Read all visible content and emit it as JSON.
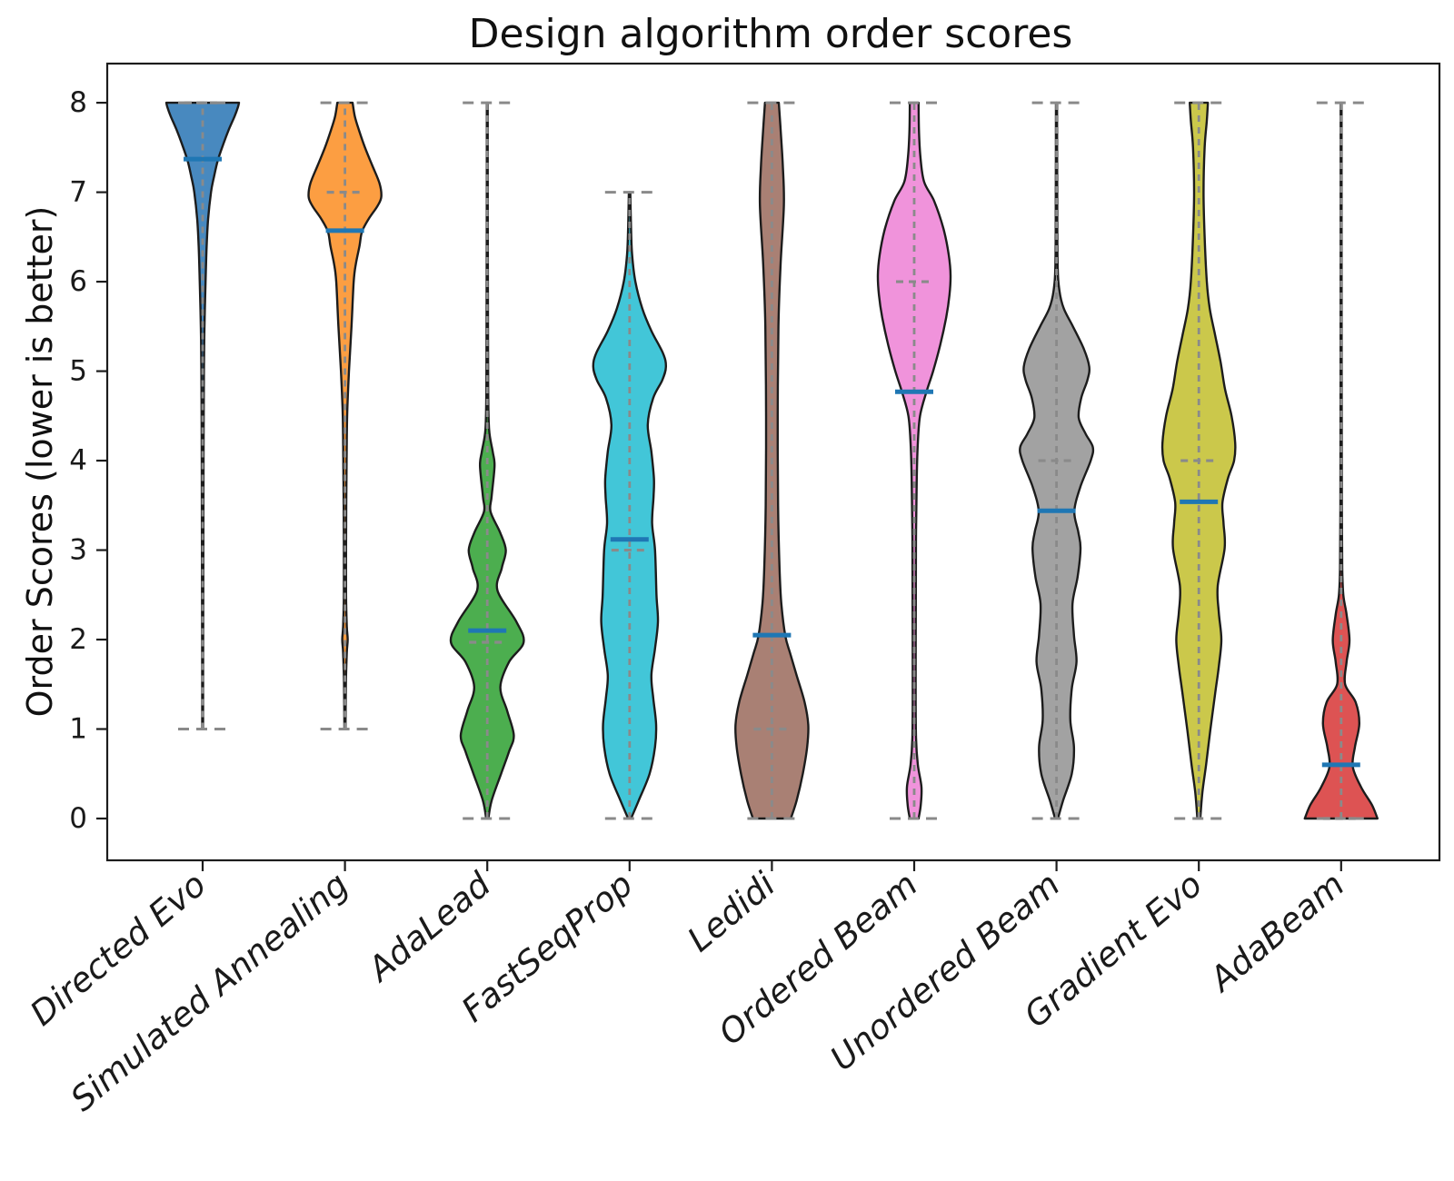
{
  "figure": {
    "title": "Design algorithm order scores",
    "ylabel": "Order Scores (lower is better)"
  },
  "chart_data": {
    "type": "violin",
    "title": "Design algorithm order scores",
    "xlabel": "",
    "ylabel": "Order Scores (lower is better)",
    "ylim": [
      -0.47,
      8.44
    ],
    "yticks": [
      0,
      1,
      2,
      3,
      4,
      5,
      6,
      7,
      8
    ],
    "grid": false,
    "legend_position": "none",
    "categories": [
      "Directed Evo",
      "Simulated Annealing",
      "AdaLead",
      "FastSeqProp",
      "Ledidi",
      "Ordered Beam",
      "Unordered Beam",
      "Gradient Evo",
      "AdaBeam"
    ],
    "styles": {
      "edge_color": "#1c1c1c",
      "whisker_color": "#8a8a8a",
      "mean_line_color": "#1f77b4",
      "text_color": "#1a1a1a"
    },
    "series": [
      {
        "label": "Directed Evo",
        "color": "#4889BF",
        "min": 1,
        "max": 8,
        "median": 8.0,
        "mean": 7.37,
        "profile": [
          [
            1,
            0.012
          ],
          [
            2,
            0.015
          ],
          [
            3,
            0.02
          ],
          [
            4,
            0.025
          ],
          [
            5,
            0.035
          ],
          [
            5.5,
            0.05
          ],
          [
            6,
            0.08
          ],
          [
            6.4,
            0.11
          ],
          [
            6.7,
            0.15
          ],
          [
            7.0,
            0.23
          ],
          [
            7.15,
            0.3
          ],
          [
            7.36,
            0.42
          ],
          [
            7.55,
            0.58
          ],
          [
            7.7,
            0.72
          ],
          [
            7.85,
            0.88
          ],
          [
            7.95,
            0.97
          ],
          [
            8,
            1.0
          ]
        ]
      },
      {
        "label": "Simulated Annealing",
        "color": "#FC9E42",
        "min": 1,
        "max": 8,
        "median": 7.0,
        "mean": 6.57,
        "profile": [
          [
            1,
            0.015
          ],
          [
            1.5,
            0.025
          ],
          [
            1.85,
            0.05
          ],
          [
            2.0,
            0.075
          ],
          [
            2.15,
            0.05
          ],
          [
            2.5,
            0.03
          ],
          [
            3,
            0.03
          ],
          [
            3.5,
            0.035
          ],
          [
            4,
            0.045
          ],
          [
            4.5,
            0.06
          ],
          [
            5,
            0.11
          ],
          [
            5.5,
            0.18
          ],
          [
            6.0,
            0.24
          ],
          [
            6.2,
            0.3
          ],
          [
            6.4,
            0.4
          ],
          [
            6.56,
            0.47
          ],
          [
            6.7,
            0.65
          ],
          [
            6.85,
            0.9
          ],
          [
            6.95,
            1.0
          ],
          [
            7.1,
            0.95
          ],
          [
            7.3,
            0.75
          ],
          [
            7.5,
            0.55
          ],
          [
            7.7,
            0.38
          ],
          [
            7.85,
            0.27
          ],
          [
            8,
            0.21
          ]
        ]
      },
      {
        "label": "AdaLead",
        "color": "#4CAE4F",
        "min": 0,
        "max": 8,
        "median": 1.97,
        "mean": 2.1,
        "profile": [
          [
            0,
            0.03
          ],
          [
            0.2,
            0.12
          ],
          [
            0.5,
            0.38
          ],
          [
            0.75,
            0.6
          ],
          [
            0.93,
            0.73
          ],
          [
            1.2,
            0.55
          ],
          [
            1.47,
            0.36
          ],
          [
            1.75,
            0.6
          ],
          [
            1.97,
            1.0
          ],
          [
            2.2,
            0.8
          ],
          [
            2.55,
            0.28
          ],
          [
            2.8,
            0.4
          ],
          [
            3.0,
            0.51
          ],
          [
            3.2,
            0.35
          ],
          [
            3.43,
            0.09
          ],
          [
            3.6,
            0.12
          ],
          [
            3.94,
            0.2
          ],
          [
            4.1,
            0.15
          ],
          [
            4.35,
            0.05
          ],
          [
            4.8,
            0.025
          ],
          [
            5.5,
            0.02
          ],
          [
            6.5,
            0.015
          ],
          [
            8,
            0.012
          ]
        ]
      },
      {
        "label": "FastSeqProp",
        "color": "#42C6D8",
        "min": 0,
        "max": 7,
        "median": 3.0,
        "mean": 3.12,
        "profile": [
          [
            0,
            0.04
          ],
          [
            0.2,
            0.25
          ],
          [
            0.5,
            0.55
          ],
          [
            0.8,
            0.7
          ],
          [
            1.05,
            0.73
          ],
          [
            1.35,
            0.65
          ],
          [
            1.6,
            0.6
          ],
          [
            1.9,
            0.7
          ],
          [
            2.2,
            0.78
          ],
          [
            2.5,
            0.74
          ],
          [
            3.0,
            0.7
          ],
          [
            3.3,
            0.62
          ],
          [
            3.6,
            0.66
          ],
          [
            3.8,
            0.67
          ],
          [
            4.1,
            0.6
          ],
          [
            4.4,
            0.5
          ],
          [
            4.7,
            0.65
          ],
          [
            4.9,
            0.9
          ],
          [
            5.05,
            1.0
          ],
          [
            5.2,
            0.92
          ],
          [
            5.45,
            0.6
          ],
          [
            5.7,
            0.35
          ],
          [
            6.0,
            0.16
          ],
          [
            6.3,
            0.07
          ],
          [
            6.6,
            0.04
          ],
          [
            7,
            0.02
          ]
        ]
      },
      {
        "label": "Ledidi",
        "color": "#A98074",
        "min": 0,
        "max": 8,
        "median": 1.0,
        "mean": 2.05,
        "profile": [
          [
            0,
            0.52
          ],
          [
            0.2,
            0.68
          ],
          [
            0.5,
            0.85
          ],
          [
            0.8,
            0.97
          ],
          [
            1.05,
            1.0
          ],
          [
            1.3,
            0.9
          ],
          [
            1.6,
            0.68
          ],
          [
            1.85,
            0.5
          ],
          [
            2.04,
            0.37
          ],
          [
            2.4,
            0.26
          ],
          [
            2.8,
            0.21
          ],
          [
            3.5,
            0.17
          ],
          [
            4.5,
            0.16
          ],
          [
            5.5,
            0.18
          ],
          [
            6.2,
            0.24
          ],
          [
            6.86,
            0.33
          ],
          [
            7.3,
            0.3
          ],
          [
            7.7,
            0.24
          ],
          [
            8,
            0.19
          ]
        ]
      },
      {
        "label": "Ordered Beam",
        "color": "#F093DB",
        "min": 0,
        "max": 8,
        "median": 6.0,
        "mean": 4.77,
        "profile": [
          [
            0,
            0.12
          ],
          [
            0.15,
            0.18
          ],
          [
            0.35,
            0.2
          ],
          [
            0.6,
            0.1
          ],
          [
            0.9,
            0.05
          ],
          [
            1.5,
            0.04
          ],
          [
            2.5,
            0.045
          ],
          [
            3.2,
            0.05
          ],
          [
            3.8,
            0.07
          ],
          [
            4.2,
            0.1
          ],
          [
            4.5,
            0.16
          ],
          [
            4.76,
            0.33
          ],
          [
            5.0,
            0.52
          ],
          [
            5.3,
            0.72
          ],
          [
            5.6,
            0.88
          ],
          [
            5.85,
            0.97
          ],
          [
            6.07,
            1.0
          ],
          [
            6.3,
            0.95
          ],
          [
            6.6,
            0.8
          ],
          [
            6.9,
            0.55
          ],
          [
            7.12,
            0.27
          ],
          [
            7.4,
            0.17
          ],
          [
            7.7,
            0.13
          ],
          [
            8,
            0.12
          ]
        ]
      },
      {
        "label": "Unordered Beam",
        "color": "#A2A2A2",
        "min": 0,
        "max": 8,
        "median": 4.0,
        "mean": 3.44,
        "profile": [
          [
            0,
            0.04
          ],
          [
            0.2,
            0.18
          ],
          [
            0.5,
            0.42
          ],
          [
            0.8,
            0.48
          ],
          [
            1.1,
            0.38
          ],
          [
            1.45,
            0.42
          ],
          [
            1.75,
            0.55
          ],
          [
            2.05,
            0.48
          ],
          [
            2.4,
            0.44
          ],
          [
            2.7,
            0.58
          ],
          [
            3.02,
            0.66
          ],
          [
            3.2,
            0.6
          ],
          [
            3.43,
            0.49
          ],
          [
            3.7,
            0.65
          ],
          [
            4.0,
            0.94
          ],
          [
            4.15,
            1.0
          ],
          [
            4.3,
            0.8
          ],
          [
            4.48,
            0.61
          ],
          [
            4.7,
            0.68
          ],
          [
            4.9,
            0.85
          ],
          [
            5.05,
            0.9
          ],
          [
            5.25,
            0.75
          ],
          [
            5.5,
            0.45
          ],
          [
            5.7,
            0.2
          ],
          [
            5.9,
            0.08
          ],
          [
            6.2,
            0.03
          ],
          [
            7,
            0.02
          ],
          [
            8,
            0.015
          ]
        ]
      },
      {
        "label": "Gradient Evo",
        "color": "#CBC84B",
        "min": 0,
        "max": 8,
        "median": 4.0,
        "mean": 3.54,
        "profile": [
          [
            0,
            0.04
          ],
          [
            0.3,
            0.1
          ],
          [
            0.6,
            0.2
          ],
          [
            1.0,
            0.32
          ],
          [
            1.4,
            0.45
          ],
          [
            1.7,
            0.55
          ],
          [
            2.0,
            0.62
          ],
          [
            2.3,
            0.55
          ],
          [
            2.6,
            0.52
          ],
          [
            3.02,
            0.71
          ],
          [
            3.3,
            0.68
          ],
          [
            3.53,
            0.65
          ],
          [
            3.8,
            0.8
          ],
          [
            4.0,
            0.97
          ],
          [
            4.2,
            1.0
          ],
          [
            4.5,
            0.9
          ],
          [
            4.8,
            0.72
          ],
          [
            5.1,
            0.6
          ],
          [
            5.4,
            0.45
          ],
          [
            5.7,
            0.3
          ],
          [
            6.0,
            0.22
          ],
          [
            6.5,
            0.16
          ],
          [
            7.0,
            0.13
          ],
          [
            7.5,
            0.16
          ],
          [
            7.8,
            0.22
          ],
          [
            8,
            0.25
          ]
        ]
      },
      {
        "label": "AdaBeam",
        "color": "#DD5353",
        "min": 0,
        "max": 8,
        "median": 0.0,
        "mean": 0.6,
        "profile": [
          [
            0,
            1.0
          ],
          [
            0.15,
            0.85
          ],
          [
            0.35,
            0.55
          ],
          [
            0.58,
            0.32
          ],
          [
            0.8,
            0.38
          ],
          [
            1.06,
            0.5
          ],
          [
            1.3,
            0.4
          ],
          [
            1.5,
            0.11
          ],
          [
            1.75,
            0.15
          ],
          [
            1.99,
            0.23
          ],
          [
            2.28,
            0.15
          ],
          [
            2.5,
            0.06
          ],
          [
            2.8,
            0.03
          ],
          [
            3.5,
            0.02
          ],
          [
            5,
            0.015
          ],
          [
            8,
            0.012
          ]
        ]
      }
    ]
  }
}
